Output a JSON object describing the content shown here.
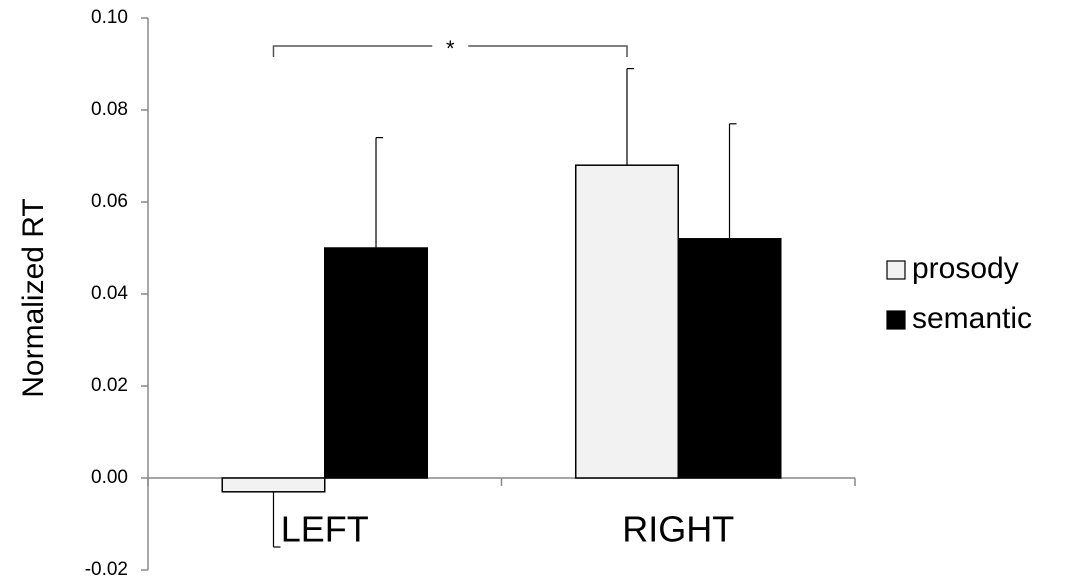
{
  "chart_data": {
    "type": "bar",
    "y_label": "Normalized RT",
    "categories": [
      "LEFT",
      "RIGHT"
    ],
    "series": [
      {
        "name": "prosody",
        "color": "#f2f2f2",
        "values": [
          -0.003,
          0.068
        ],
        "errors": [
          0.012,
          0.021
        ]
      },
      {
        "name": "semantic",
        "color": "#000000",
        "values": [
          0.05,
          0.052
        ],
        "errors": [
          0.024,
          0.025
        ]
      }
    ],
    "annotation": "*",
    "ylim": [
      -0.02,
      0.1
    ],
    "yticks": [
      -0.02,
      {
        "value": 0,
        "label": "0.00"
      },
      0.02,
      0.04,
      0.06,
      0.08,
      {
        "value": 0.1,
        "label": "0.10"
      }
    ],
    "grid": false,
    "legend": "right"
  }
}
